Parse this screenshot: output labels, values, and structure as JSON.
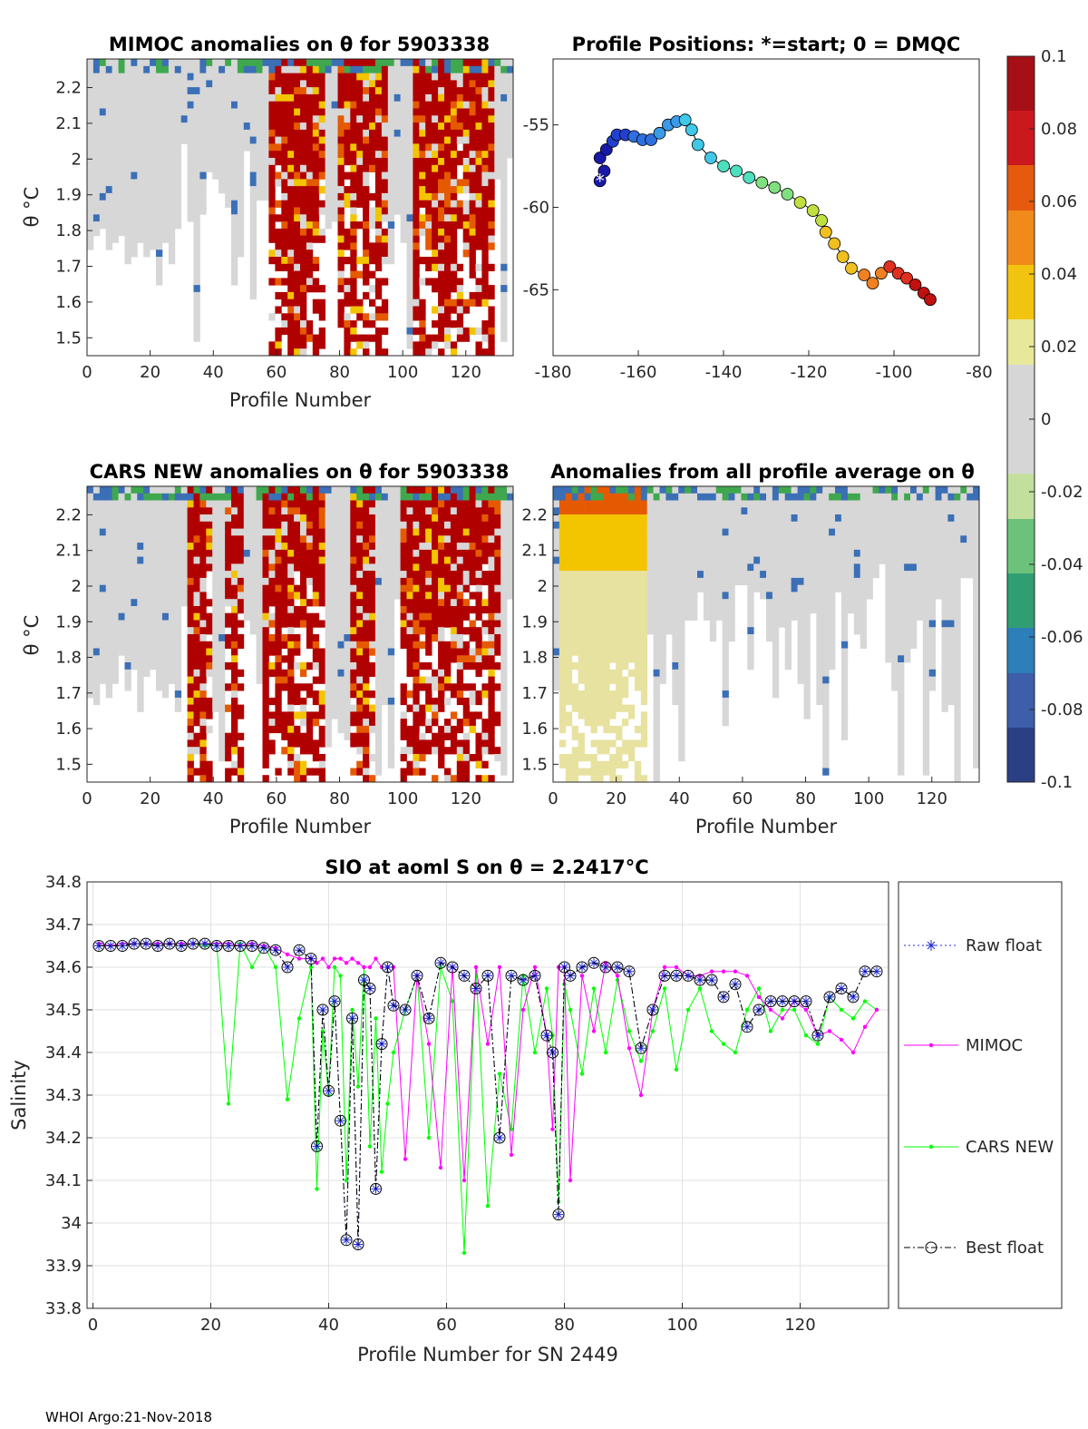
{
  "footer": "WHOI Argo:21-Nov-2018",
  "colors": {
    "high": "#b10000",
    "mid_high": "#e55a00",
    "warm": "#f3c400",
    "neutral": "#d7d7d7",
    "green": "#3fa84e",
    "blue": "#3b6fb6",
    "deep_blue": "#2a4b8d",
    "raw_float": "#1f2bd8",
    "mimoc": "#ff00ff",
    "cars_new": "#00ff00",
    "best_float": "#000000"
  },
  "chart_data": [
    {
      "type": "heatmap",
      "title": "MIMOC anomalies on θ  for 5903338",
      "xlabel": "Profile Number",
      "ylabel": "θ °C",
      "xlim": [
        0,
        135
      ],
      "ylim": [
        1.45,
        2.28
      ],
      "xticks": [
        "0",
        "20",
        "40",
        "60",
        "80",
        "100",
        "120"
      ],
      "yticks": [
        "2.2",
        "2.1",
        "2",
        "1.9",
        "1.8",
        "1.7",
        "1.6",
        "1.5"
      ],
      "anomaly_regions": [
        {
          "from": 57,
          "to": 75,
          "level": "high"
        },
        {
          "from": 80,
          "to": 95,
          "level": "high"
        },
        {
          "from": 104,
          "to": 130,
          "level": "high"
        }
      ]
    },
    {
      "type": "scatter",
      "title": "Profile Positions: *=start; 0 = DMQC",
      "xlim": [
        -180,
        -80
      ],
      "ylim": [
        -69,
        -51
      ],
      "xticks": [
        "-180",
        "-160",
        "-140",
        "-120",
        "-100",
        "-80"
      ],
      "yticks": [
        "-55",
        "-60",
        "-65"
      ],
      "track_lon": [
        -169,
        -168,
        -169,
        -167.5,
        -166,
        -165,
        -163,
        -161,
        -159,
        -157,
        -155,
        -153,
        -151,
        -149,
        -147.5,
        -146,
        -143,
        -140,
        -137,
        -134,
        -131,
        -128,
        -125,
        -122,
        -119,
        -117,
        -116,
        -114,
        -112,
        -110,
        -107,
        -105,
        -103,
        -101,
        -99,
        -97,
        -95,
        -93,
        -91.5
      ],
      "track_lat": [
        -58.4,
        -57.8,
        -57.0,
        -56.5,
        -56.0,
        -55.6,
        -55.6,
        -55.7,
        -55.9,
        -55.9,
        -55.5,
        -55.0,
        -54.8,
        -54.7,
        -55.3,
        -56.2,
        -57.0,
        -57.5,
        -57.8,
        -58.2,
        -58.5,
        -58.8,
        -59.2,
        -59.7,
        -60.2,
        -60.8,
        -61.5,
        -62.2,
        -63.0,
        -63.7,
        -64.1,
        -64.6,
        -64.0,
        -63.6,
        -64.0,
        -64.3,
        -64.7,
        -65.2,
        -65.6
      ],
      "start": [
        -169,
        -58.4
      ],
      "colorbar_ticks": [
        "0.1",
        "0.08",
        "0.06",
        "0.04",
        "0.02",
        "0",
        "-0.02",
        "-0.04",
        "-0.06",
        "-0.08",
        "-0.1"
      ]
    },
    {
      "type": "heatmap",
      "title": "CARS NEW anomalies on θ for 5903338",
      "xlabel": "Profile Number",
      "ylabel": "θ °C",
      "xlim": [
        0,
        135
      ],
      "ylim": [
        1.45,
        2.28
      ],
      "xticks": [
        "0",
        "20",
        "40",
        "60",
        "80",
        "100",
        "120"
      ],
      "yticks": [
        "2.2",
        "2.1",
        "2",
        "1.9",
        "1.8",
        "1.7",
        "1.6",
        "1.5"
      ],
      "anomaly_regions": [
        {
          "from": 31,
          "to": 40,
          "level": "high"
        },
        {
          "from": 44,
          "to": 50,
          "level": "high"
        },
        {
          "from": 56,
          "to": 75,
          "level": "high"
        },
        {
          "from": 84,
          "to": 92,
          "level": "high"
        },
        {
          "from": 100,
          "to": 132,
          "level": "high"
        }
      ]
    },
    {
      "type": "heatmap",
      "title": "Anomalies from all profile average on θ",
      "xlabel": "Profile Number",
      "xlim": [
        0,
        135
      ],
      "ylim": [
        1.45,
        2.28
      ],
      "xticks": [
        "0",
        "20",
        "40",
        "60",
        "80",
        "100",
        "120"
      ],
      "yticks": [
        "2.2",
        "2.1",
        "2",
        "1.9",
        "1.8",
        "1.7",
        "1.6",
        "1.5"
      ],
      "anomaly_regions": [
        {
          "from": 1,
          "to": 30,
          "level": "warm"
        }
      ]
    },
    {
      "type": "line",
      "title": "SIO at aoml S on θ = 2.2417°C",
      "xlabel": "Profile Number for SN 2449",
      "ylabel": "Salinity",
      "xlim": [
        -1,
        135
      ],
      "ylim": [
        33.8,
        34.8
      ],
      "xticks": [
        "0",
        "20",
        "40",
        "60",
        "80",
        "100",
        "120"
      ],
      "yticks": [
        "34.8",
        "34.7",
        "34.6",
        "34.5",
        "34.4",
        "34.3",
        "34.2",
        "34.1",
        "34",
        "33.9",
        "33.8"
      ],
      "x": [
        1,
        3,
        5,
        7,
        9,
        11,
        13,
        15,
        17,
        19,
        21,
        23,
        25,
        27,
        29,
        31,
        33,
        35,
        37,
        38,
        39,
        40,
        41,
        42,
        43,
        44,
        45,
        46,
        47,
        48,
        49,
        50,
        51,
        53,
        55,
        57,
        59,
        61,
        63,
        65,
        67,
        69,
        71,
        73,
        75,
        77,
        78,
        79,
        80,
        81,
        83,
        85,
        87,
        89,
        91,
        93,
        95,
        97,
        99,
        101,
        103,
        105,
        107,
        109,
        111,
        113,
        115,
        117,
        119,
        121,
        123,
        125,
        127,
        129,
        131,
        133
      ],
      "series": [
        {
          "name": "Raw float",
          "values": [
            34.65,
            34.65,
            34.65,
            34.655,
            34.655,
            34.65,
            34.655,
            34.65,
            34.655,
            34.655,
            34.65,
            34.65,
            34.65,
            34.65,
            34.645,
            34.64,
            34.6,
            34.64,
            34.62,
            34.18,
            34.5,
            34.31,
            34.52,
            34.24,
            33.96,
            34.48,
            33.95,
            34.57,
            34.55,
            34.08,
            34.42,
            34.6,
            34.51,
            34.5,
            34.58,
            34.48,
            34.61,
            34.6,
            34.58,
            34.55,
            34.58,
            34.2,
            34.58,
            34.57,
            34.58,
            34.44,
            34.4,
            34.02,
            34.6,
            34.58,
            34.6,
            34.61,
            34.6,
            34.6,
            34.59,
            34.41,
            34.5,
            34.58,
            34.58,
            34.58,
            34.57,
            34.57,
            34.53,
            34.56,
            34.46,
            34.5,
            34.52,
            34.52,
            34.52,
            34.52,
            34.44,
            34.53,
            34.55,
            34.53,
            34.59,
            34.59
          ]
        },
        {
          "name": "MIMOC",
          "values": [
            34.655,
            34.65,
            34.655,
            34.655,
            34.655,
            34.655,
            34.655,
            34.655,
            34.655,
            34.655,
            34.655,
            34.655,
            34.65,
            34.655,
            34.65,
            34.645,
            34.63,
            34.62,
            34.62,
            34.61,
            34.62,
            34.6,
            34.62,
            34.62,
            34.61,
            34.62,
            34.61,
            34.6,
            34.6,
            34.62,
            34.6,
            34.6,
            34.6,
            34.15,
            34.58,
            34.42,
            34.13,
            34.6,
            34.1,
            34.6,
            34.42,
            34.6,
            34.16,
            34.5,
            34.6,
            34.44,
            34.22,
            34.6,
            34.6,
            34.1,
            34.58,
            34.45,
            34.61,
            34.58,
            34.41,
            34.3,
            34.5,
            34.6,
            34.6,
            34.58,
            34.58,
            34.59,
            34.59,
            34.59,
            34.58,
            34.53,
            34.5,
            34.48,
            34.52,
            34.5,
            34.44,
            34.45,
            34.43,
            34.4,
            34.46,
            34.5
          ]
        },
        {
          "name": "CARS NEW",
          "values": [
            34.655,
            34.65,
            34.655,
            34.655,
            34.655,
            34.655,
            34.655,
            34.655,
            34.655,
            34.65,
            34.655,
            34.28,
            34.655,
            34.6,
            34.65,
            34.6,
            34.29,
            34.48,
            34.6,
            34.08,
            34.45,
            34.3,
            34.6,
            34.58,
            34.1,
            34.5,
            34.32,
            34.6,
            34.18,
            34.48,
            34.12,
            34.28,
            34.4,
            34.5,
            34.58,
            34.2,
            34.6,
            34.52,
            33.93,
            34.6,
            34.04,
            34.35,
            34.22,
            34.58,
            34.4,
            34.55,
            34.44,
            34.05,
            34.56,
            34.5,
            34.35,
            34.55,
            34.4,
            34.57,
            34.45,
            34.38,
            34.45,
            34.55,
            34.36,
            34.5,
            34.55,
            34.45,
            34.42,
            34.4,
            34.5,
            34.55,
            34.45,
            34.5,
            34.5,
            34.44,
            34.42,
            34.53,
            34.5,
            34.48,
            34.52,
            34.5
          ]
        },
        {
          "name": "Best float",
          "values": [
            34.65,
            34.65,
            34.65,
            34.655,
            34.655,
            34.65,
            34.655,
            34.65,
            34.655,
            34.655,
            34.65,
            34.65,
            34.65,
            34.65,
            34.645,
            34.64,
            34.6,
            34.64,
            34.62,
            34.18,
            34.5,
            34.31,
            34.52,
            34.24,
            33.96,
            34.48,
            33.95,
            34.57,
            34.55,
            34.08,
            34.42,
            34.6,
            34.51,
            34.5,
            34.58,
            34.48,
            34.61,
            34.6,
            34.58,
            34.55,
            34.58,
            34.2,
            34.58,
            34.57,
            34.58,
            34.44,
            34.4,
            34.02,
            34.6,
            34.58,
            34.6,
            34.61,
            34.6,
            34.6,
            34.59,
            34.41,
            34.5,
            34.58,
            34.58,
            34.58,
            34.57,
            34.57,
            34.53,
            34.56,
            34.46,
            34.5,
            34.52,
            34.52,
            34.52,
            34.52,
            34.44,
            34.53,
            34.55,
            34.53,
            34.59,
            34.59
          ]
        }
      ],
      "legend": [
        "Raw float",
        "MIMOC",
        "CARS NEW",
        "Best float"
      ]
    }
  ]
}
